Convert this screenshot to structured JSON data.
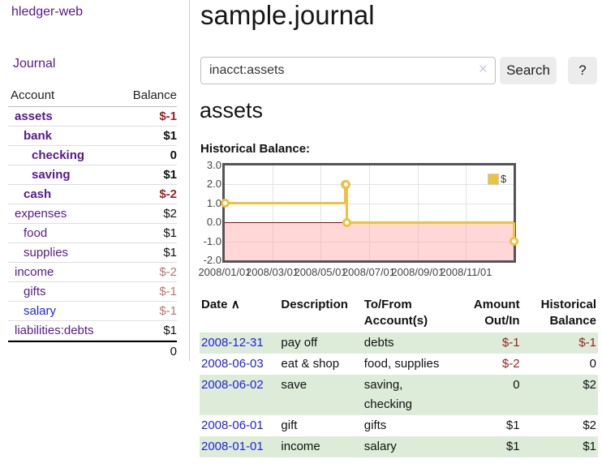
{
  "app": {
    "title": "hledger-web"
  },
  "sidebar": {
    "journal_link": "Journal",
    "table": {
      "headers": {
        "account": "Account",
        "balance": "Balance"
      },
      "accounts": [
        {
          "name": "assets",
          "balance": "$-1"
        },
        {
          "name": "bank",
          "balance": "$1"
        },
        {
          "name": "checking",
          "balance": "0"
        },
        {
          "name": "saving",
          "balance": "$1"
        },
        {
          "name": "cash",
          "balance": "$-2"
        },
        {
          "name": "expenses",
          "balance": "$2"
        },
        {
          "name": "food",
          "balance": "$1"
        },
        {
          "name": "supplies",
          "balance": "$1"
        },
        {
          "name": "income",
          "balance": "$-2"
        },
        {
          "name": "gifts",
          "balance": "$-1"
        },
        {
          "name": "salary",
          "balance": "$-1"
        },
        {
          "name": "liabilities:debts",
          "balance": "$1"
        }
      ],
      "total": "0"
    }
  },
  "header": {
    "title": "sample.journal"
  },
  "search": {
    "value": "inacct:assets",
    "clear_icon": "×",
    "button_label": "Search",
    "help_label": "?"
  },
  "account_page": {
    "heading": "assets",
    "chart_label": "Historical Balance:"
  },
  "chart_data": {
    "type": "line",
    "title": "Historical Balance:",
    "series": [
      {
        "name": "$",
        "color": "#edc240",
        "step": true,
        "points": [
          [
            "2008-01-01",
            1
          ],
          [
            "2008-06-01",
            2
          ],
          [
            "2008-06-02",
            2
          ],
          [
            "2008-06-03",
            0
          ],
          [
            "2008-12-31",
            -1
          ]
        ]
      }
    ],
    "x_ticks": [
      "2008/01/01",
      "2008/03/01",
      "2008/05/01",
      "2008/07/01",
      "2008/09/01",
      "2008/11/01"
    ],
    "y_ticks": [
      "3.0",
      "2.0",
      "1.0",
      "0.0",
      "-1.0",
      "-2.0"
    ],
    "xlim": [
      "2008-01-01",
      "2008-12-31"
    ],
    "ylim": [
      -2,
      3
    ],
    "grid": true,
    "legend_position": "top-right",
    "negative_region_color": "rgba(255,160,160,0.42)",
    "zero_line_color": "#a40000"
  },
  "register_table": {
    "sort_indicator": "∧",
    "headers": {
      "date": "Date",
      "description": "Description",
      "to_from": [
        "To/From",
        "Account(s)"
      ],
      "amount": [
        "Amount",
        "Out/In"
      ],
      "historical": [
        "Historical",
        "Balance"
      ]
    },
    "rows": [
      {
        "date": "2008-12-31",
        "description": "pay off",
        "to_from": "debts",
        "amount": "$-1",
        "historical": "$-1"
      },
      {
        "date": "2008-06-03",
        "description": "eat & shop",
        "to_from": "food, supplies",
        "amount": "$-2",
        "historical": "0"
      },
      {
        "date": "2008-06-02",
        "description": "save",
        "to_from": [
          "saving,",
          "checking"
        ],
        "amount": "0",
        "historical": "$2"
      },
      {
        "date": "2008-06-01",
        "description": "gift",
        "to_from": "gifts",
        "amount": "$1",
        "historical": "$2"
      },
      {
        "date": "2008-01-01",
        "description": "income",
        "to_from": "salary",
        "amount": "$1",
        "historical": "$1"
      }
    ]
  }
}
